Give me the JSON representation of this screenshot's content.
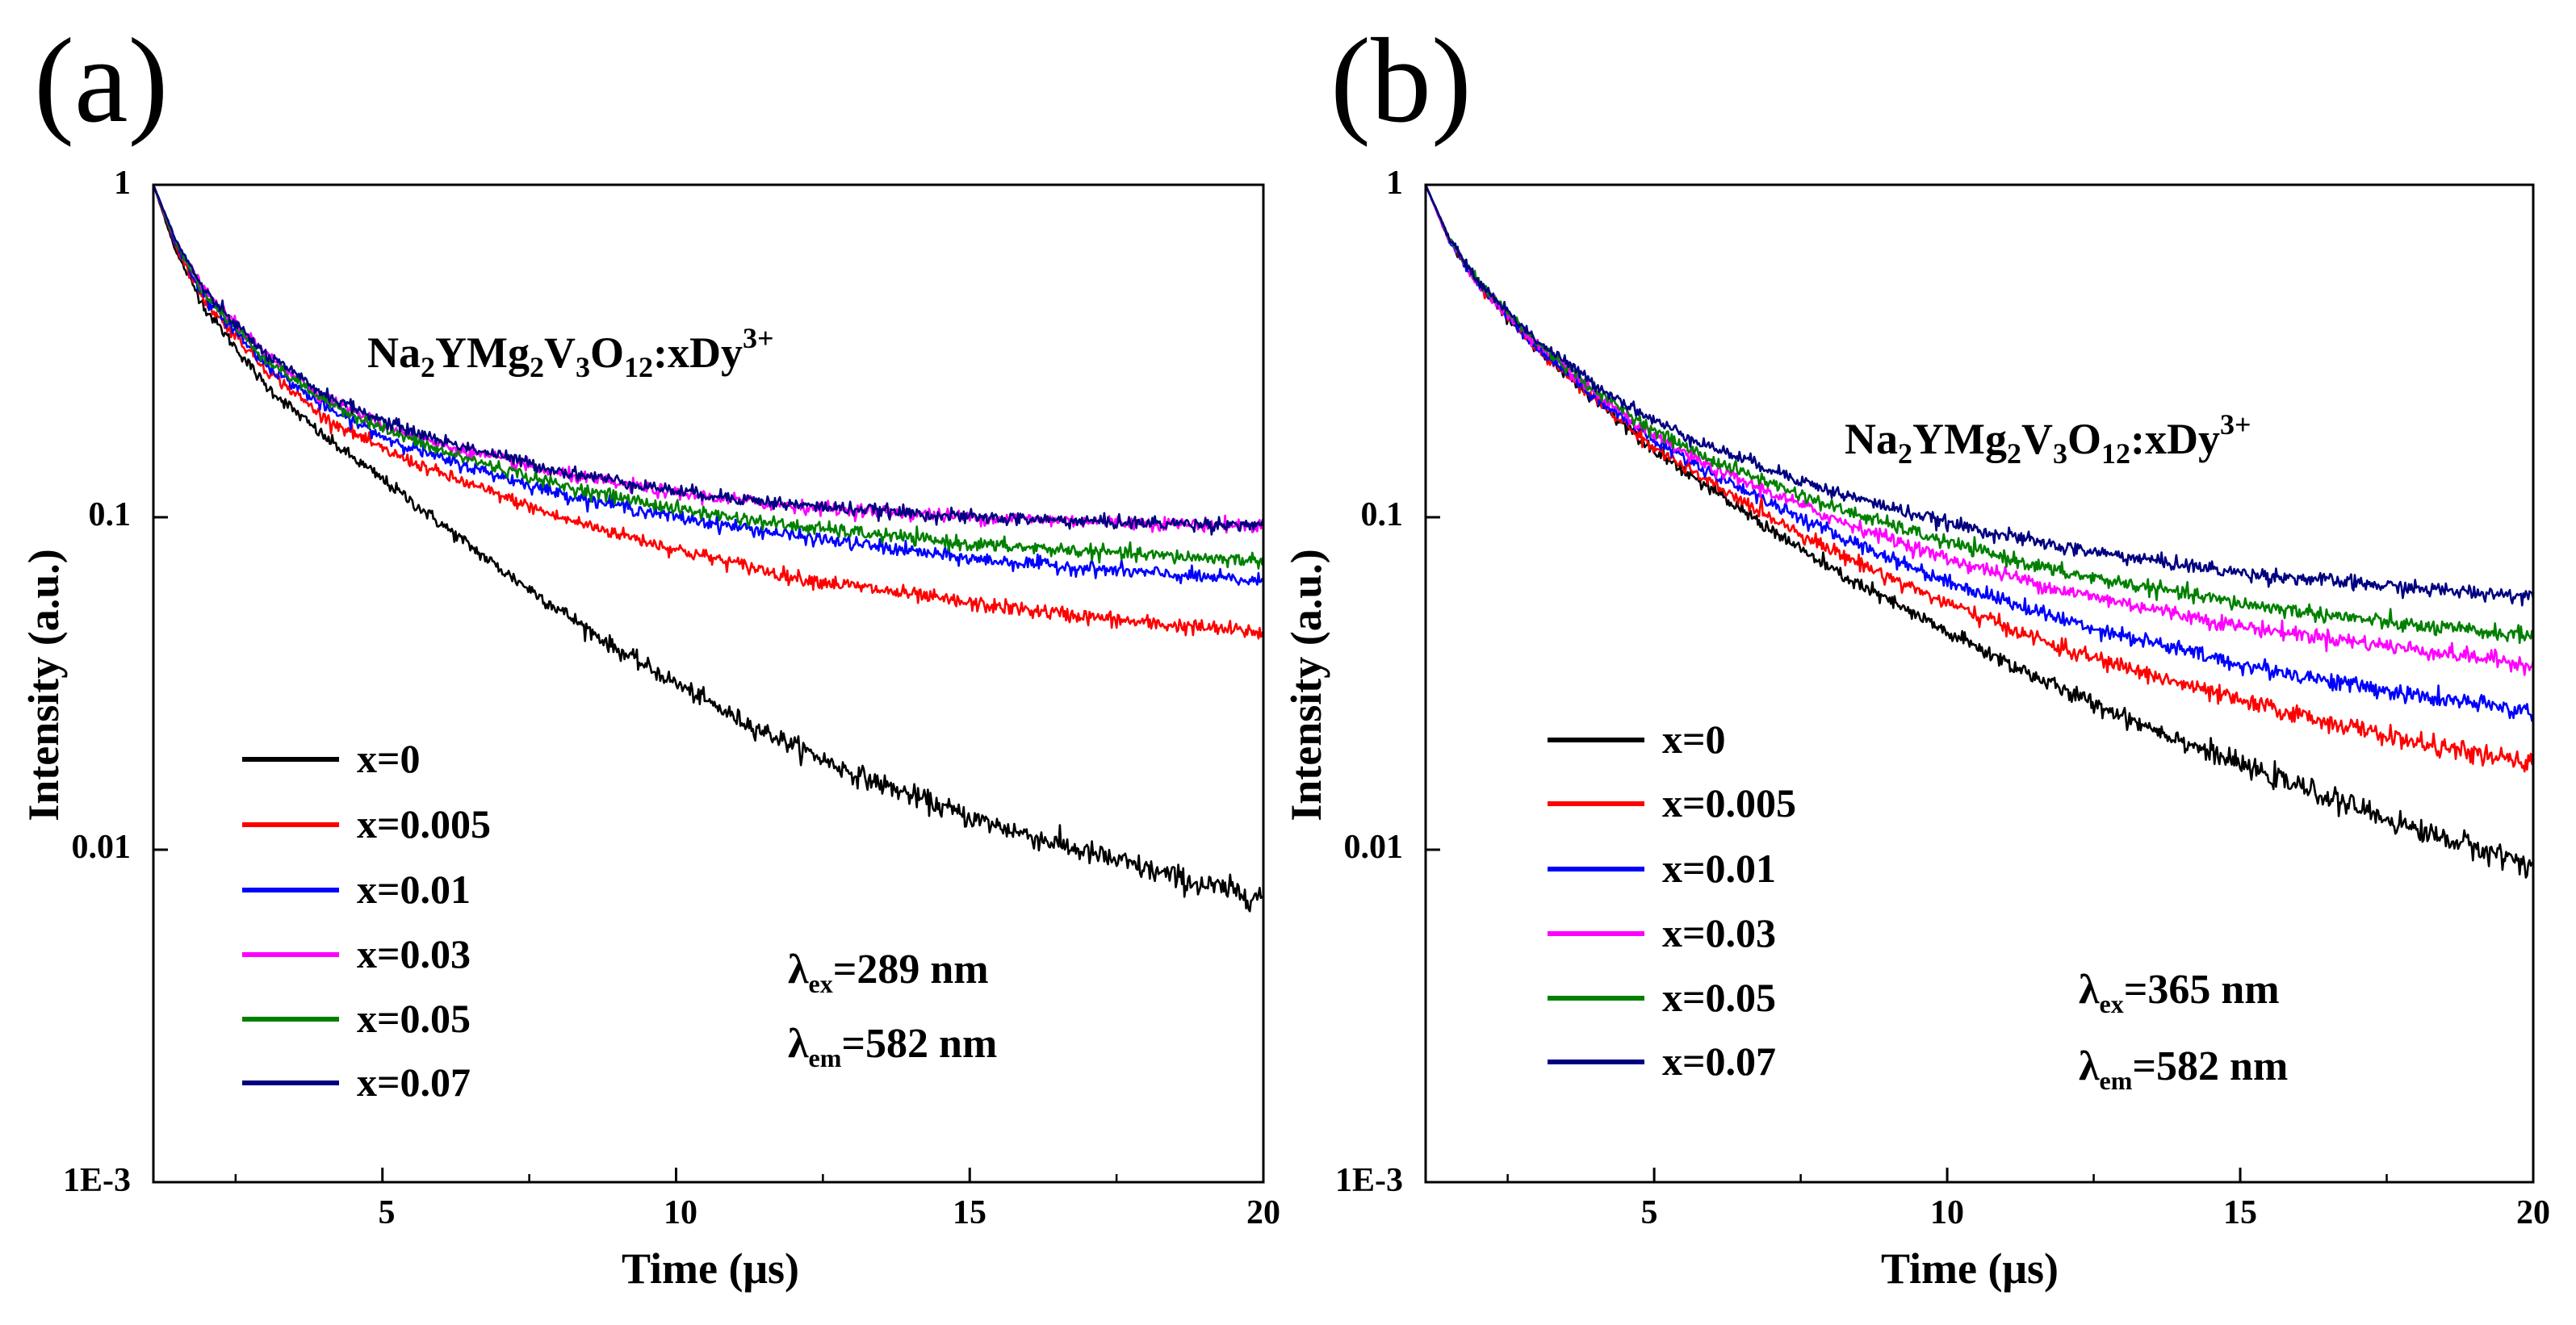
{
  "chart_data": [
    {
      "type": "line",
      "panel_label": "(a)",
      "xlabel": "Time (μs)",
      "ylabel": "Intensity (a.u.)",
      "x_scale": "linear",
      "y_scale": "log",
      "xlim": [
        1.1,
        20
      ],
      "ylim": [
        0.001,
        1
      ],
      "x_ticks": [
        {
          "value": 5,
          "label": "5"
        },
        {
          "value": 10,
          "label": "10"
        },
        {
          "value": 15,
          "label": "15"
        },
        {
          "value": 20,
          "label": "20"
        }
      ],
      "y_ticks": [
        {
          "value": 1,
          "label": "1"
        },
        {
          "value": 0.1,
          "label": "0.1"
        },
        {
          "value": 0.01,
          "label": "0.01"
        },
        {
          "value": 0.001,
          "label": "1E-3"
        }
      ],
      "compound": {
        "base": "Na",
        "s1": "2",
        "t1": "YMg",
        "s2": "2",
        "t2": "V",
        "s3": "3",
        "t3": "O",
        "s4": "12",
        "t4": ":xDy",
        "sup": "3+"
      },
      "lambda_ex": {
        "symbol": "λ",
        "sub": "ex",
        "text": "=289 nm"
      },
      "lambda_em": {
        "symbol": "λ",
        "sub": "em",
        "text": "=582 nm"
      },
      "series": [
        {
          "name": "x=0",
          "color": "#000000",
          "x": [
            1.1,
            1.5,
            2,
            3,
            4,
            5,
            7,
            9,
            11,
            13,
            15,
            17,
            19,
            20
          ],
          "y": [
            1.0,
            0.62,
            0.42,
            0.25,
            0.175,
            0.13,
            0.07,
            0.04,
            0.025,
            0.017,
            0.0125,
            0.0098,
            0.0078,
            0.0072
          ]
        },
        {
          "name": "x=0.005",
          "color": "#ff0000",
          "x": [
            1.1,
            1.5,
            2,
            3,
            4,
            5,
            6,
            8,
            10,
            12,
            15,
            18,
            20
          ],
          "y": [
            1.0,
            0.64,
            0.44,
            0.28,
            0.2,
            0.16,
            0.135,
            0.1,
            0.08,
            0.066,
            0.055,
            0.048,
            0.045
          ]
        },
        {
          "name": "x=0.01",
          "color": "#0000ff",
          "x": [
            1.1,
            1.5,
            2,
            3,
            4,
            5,
            6,
            8,
            10,
            12,
            15,
            18,
            20
          ],
          "y": [
            1.0,
            0.65,
            0.45,
            0.29,
            0.215,
            0.175,
            0.15,
            0.118,
            0.1,
            0.088,
            0.075,
            0.068,
            0.064
          ]
        },
        {
          "name": "x=0.03",
          "color": "#ff00ff",
          "x": [
            1.1,
            1.5,
            2,
            3,
            4,
            5,
            6,
            8,
            10,
            12,
            15,
            18,
            20
          ],
          "y": [
            1.0,
            0.66,
            0.47,
            0.31,
            0.23,
            0.19,
            0.165,
            0.135,
            0.118,
            0.108,
            0.1,
            0.096,
            0.094
          ]
        },
        {
          "name": "x=0.05",
          "color": "#008000",
          "x": [
            1.1,
            1.5,
            2,
            3,
            4,
            5,
            6,
            8,
            10,
            12,
            15,
            18,
            20
          ],
          "y": [
            1.0,
            0.66,
            0.46,
            0.3,
            0.225,
            0.185,
            0.158,
            0.125,
            0.106,
            0.094,
            0.083,
            0.077,
            0.074
          ]
        },
        {
          "name": "x=0.07",
          "color": "#000080",
          "x": [
            1.1,
            1.5,
            2,
            3,
            4,
            5,
            6,
            8,
            10,
            12,
            15,
            18,
            20
          ],
          "y": [
            1.0,
            0.67,
            0.47,
            0.31,
            0.235,
            0.195,
            0.17,
            0.138,
            0.12,
            0.109,
            0.1,
            0.096,
            0.095
          ]
        }
      ]
    },
    {
      "type": "line",
      "panel_label": "(b)",
      "xlabel": "Time (μs)",
      "ylabel": "Intensity (a.u.)",
      "x_scale": "linear",
      "y_scale": "log",
      "xlim": [
        1.1,
        20
      ],
      "ylim": [
        0.001,
        1
      ],
      "x_ticks": [
        {
          "value": 5,
          "label": "5"
        },
        {
          "value": 10,
          "label": "10"
        },
        {
          "value": 15,
          "label": "15"
        },
        {
          "value": 20,
          "label": "20"
        }
      ],
      "y_ticks": [
        {
          "value": 1,
          "label": "1"
        },
        {
          "value": 0.1,
          "label": "0.1"
        },
        {
          "value": 0.01,
          "label": "0.01"
        },
        {
          "value": 0.001,
          "label": "1E-3"
        }
      ],
      "compound": {
        "base": "Na",
        "s1": "2",
        "t1": "YMg",
        "s2": "2",
        "t2": "V",
        "s3": "3",
        "t3": "O",
        "s4": "12",
        "t4": ":xDy",
        "sup": "3+"
      },
      "lambda_ex": {
        "symbol": "λ",
        "sub": "ex",
        "text": "=365 nm"
      },
      "lambda_em": {
        "symbol": "λ",
        "sub": "em",
        "text": "=582 nm"
      },
      "series": [
        {
          "name": "x=0",
          "color": "#000000",
          "x": [
            1.1,
            1.5,
            2,
            3,
            4,
            5,
            6,
            8,
            10,
            12,
            15,
            18,
            20
          ],
          "y": [
            1.0,
            0.68,
            0.5,
            0.32,
            0.225,
            0.16,
            0.12,
            0.07,
            0.045,
            0.03,
            0.018,
            0.0115,
            0.009
          ]
        },
        {
          "name": "x=0.005",
          "color": "#ff0000",
          "x": [
            1.1,
            1.5,
            2,
            3,
            4,
            5,
            6,
            8,
            10,
            12,
            15,
            18,
            20
          ],
          "y": [
            1.0,
            0.68,
            0.5,
            0.32,
            0.225,
            0.162,
            0.125,
            0.08,
            0.055,
            0.04,
            0.028,
            0.021,
            0.018
          ]
        },
        {
          "name": "x=0.01",
          "color": "#0000ff",
          "x": [
            1.1,
            1.5,
            2,
            3,
            4,
            5,
            6,
            8,
            10,
            12,
            15,
            18,
            20
          ],
          "y": [
            1.0,
            0.68,
            0.5,
            0.325,
            0.23,
            0.17,
            0.135,
            0.09,
            0.064,
            0.049,
            0.036,
            0.029,
            0.026
          ]
        },
        {
          "name": "x=0.03",
          "color": "#ff00ff",
          "x": [
            1.1,
            1.5,
            2,
            3,
            4,
            5,
            6,
            8,
            10,
            12,
            15,
            18,
            20
          ],
          "y": [
            1.0,
            0.68,
            0.5,
            0.33,
            0.235,
            0.175,
            0.14,
            0.1,
            0.075,
            0.06,
            0.047,
            0.04,
            0.036
          ]
        },
        {
          "name": "x=0.05",
          "color": "#008000",
          "x": [
            1.1,
            1.5,
            2,
            3,
            4,
            5,
            6,
            8,
            10,
            12,
            15,
            18,
            20
          ],
          "y": [
            1.0,
            0.69,
            0.51,
            0.335,
            0.24,
            0.182,
            0.148,
            0.108,
            0.084,
            0.068,
            0.055,
            0.047,
            0.044
          ]
        },
        {
          "name": "x=0.07",
          "color": "#000080",
          "x": [
            1.1,
            1.5,
            2,
            3,
            4,
            5,
            6,
            8,
            10,
            12,
            15,
            18,
            20
          ],
          "y": [
            1.0,
            0.69,
            0.51,
            0.34,
            0.25,
            0.195,
            0.162,
            0.12,
            0.096,
            0.081,
            0.068,
            0.061,
            0.058
          ]
        }
      ]
    }
  ]
}
